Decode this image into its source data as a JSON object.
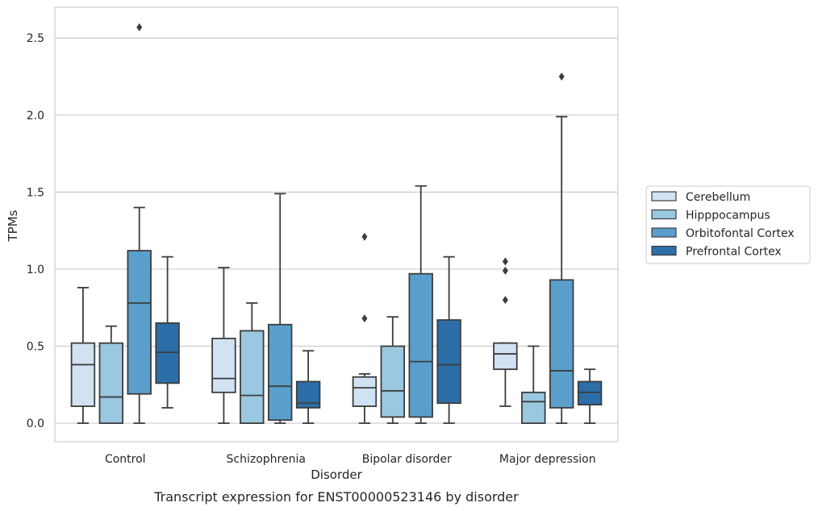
{
  "chart_data": {
    "type": "box",
    "caption": "Transcript expression for ENST00000523146 by disorder",
    "xlabel": "Disorder",
    "ylabel": "TPMs",
    "ylim": [
      -0.12,
      2.7
    ],
    "yticks": [
      "0.0",
      "0.5",
      "1.0",
      "1.5",
      "2.0",
      "2.5"
    ],
    "grid": "horizontal",
    "legend_position": "right",
    "categories": [
      "Control",
      "Schizophrenia",
      "Bipolar disorder",
      "Major depression"
    ],
    "series": [
      {
        "name": "Cerebellum",
        "color": "#d1e3f3",
        "boxes": [
          {
            "whisker_low": 0.0,
            "q1": 0.11,
            "median": 0.38,
            "q3": 0.52,
            "whisker_high": 0.88,
            "outliers": []
          },
          {
            "whisker_low": 0.0,
            "q1": 0.2,
            "median": 0.29,
            "q3": 0.55,
            "whisker_high": 1.01,
            "outliers": []
          },
          {
            "whisker_low": 0.0,
            "q1": 0.11,
            "median": 0.23,
            "q3": 0.3,
            "whisker_high": 0.32,
            "outliers": [
              0.68,
              1.21
            ]
          },
          {
            "whisker_low": 0.11,
            "q1": 0.35,
            "median": 0.45,
            "q3": 0.52,
            "whisker_high": 0.52,
            "outliers": [
              0.8,
              0.99,
              1.05
            ]
          }
        ]
      },
      {
        "name": "Hipppocampus",
        "color": "#9ac8e0",
        "boxes": [
          {
            "whisker_low": 0.0,
            "q1": 0.0,
            "median": 0.17,
            "q3": 0.52,
            "whisker_high": 0.63,
            "outliers": []
          },
          {
            "whisker_low": 0.0,
            "q1": 0.0,
            "median": 0.18,
            "q3": 0.6,
            "whisker_high": 0.78,
            "outliers": []
          },
          {
            "whisker_low": 0.0,
            "q1": 0.04,
            "median": 0.21,
            "q3": 0.5,
            "whisker_high": 0.69,
            "outliers": []
          },
          {
            "whisker_low": 0.0,
            "q1": 0.0,
            "median": 0.14,
            "q3": 0.2,
            "whisker_high": 0.5,
            "outliers": []
          }
        ]
      },
      {
        "name": "Orbitofontal Cortex",
        "color": "#5a9fcc",
        "boxes": [
          {
            "whisker_low": 0.0,
            "q1": 0.19,
            "median": 0.78,
            "q3": 1.12,
            "whisker_high": 1.4,
            "outliers": [
              2.57
            ]
          },
          {
            "whisker_low": 0.0,
            "q1": 0.02,
            "median": 0.24,
            "q3": 0.64,
            "whisker_high": 1.49,
            "outliers": []
          },
          {
            "whisker_low": 0.0,
            "q1": 0.04,
            "median": 0.4,
            "q3": 0.97,
            "whisker_high": 1.54,
            "outliers": []
          },
          {
            "whisker_low": 0.0,
            "q1": 0.1,
            "median": 0.34,
            "q3": 0.93,
            "whisker_high": 1.99,
            "outliers": [
              2.25
            ]
          }
        ]
      },
      {
        "name": "Prefrontal Cortex",
        "color": "#2b6ea8",
        "boxes": [
          {
            "whisker_low": 0.1,
            "q1": 0.26,
            "median": 0.46,
            "q3": 0.65,
            "whisker_high": 1.08,
            "outliers": []
          },
          {
            "whisker_low": 0.0,
            "q1": 0.1,
            "median": 0.13,
            "q3": 0.27,
            "whisker_high": 0.47,
            "outliers": []
          },
          {
            "whisker_low": 0.0,
            "q1": 0.13,
            "median": 0.38,
            "q3": 0.67,
            "whisker_high": 1.08,
            "outliers": []
          },
          {
            "whisker_low": 0.0,
            "q1": 0.12,
            "median": 0.2,
            "q3": 0.27,
            "whisker_high": 0.35,
            "outliers": []
          }
        ]
      }
    ]
  }
}
